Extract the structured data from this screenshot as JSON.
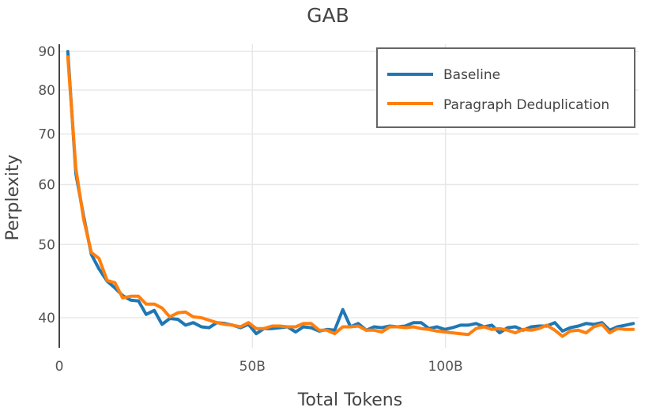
{
  "chart_data": {
    "type": "line",
    "title": "GAB",
    "xlabel": "Total Tokens",
    "ylabel": "Perplexity",
    "y_scale": "log",
    "xlim": [
      0,
      150
    ],
    "ylim": [
      36.5,
      92
    ],
    "x_ticks": [
      {
        "value": 0,
        "label": "0"
      },
      {
        "value": 50,
        "label": "50B"
      },
      {
        "value": 100,
        "label": "100B"
      }
    ],
    "y_ticks": [
      {
        "value": 40,
        "label": "40"
      },
      {
        "value": 50,
        "label": "50"
      },
      {
        "value": 60,
        "label": "60"
      },
      {
        "value": 70,
        "label": "70"
      },
      {
        "value": 80,
        "label": "80"
      },
      {
        "value": 90,
        "label": "90"
      }
    ],
    "grid": true,
    "legend_position": "top-right",
    "x": [
      2.2,
      4.3,
      6.3,
      8.3,
      10.3,
      12.4,
      14.4,
      16.4,
      18.5,
      20.5,
      22.5,
      24.6,
      26.6,
      28.6,
      30.7,
      32.7,
      34.7,
      36.8,
      38.8,
      40.8,
      42.9,
      44.9,
      46.9,
      49.0,
      51.0,
      53.0,
      55.1,
      57.1,
      59.1,
      61.2,
      63.2,
      65.2,
      67.3,
      69.3,
      71.3,
      73.4,
      75.4,
      77.4,
      79.5,
      81.5,
      83.5,
      85.6,
      87.6,
      89.6,
      91.7,
      93.7,
      95.7,
      97.8,
      99.8,
      101.8,
      103.9,
      105.9,
      107.9,
      110.0,
      112.0,
      114.0,
      116.1,
      118.1,
      120.1,
      122.2,
      124.2,
      126.2,
      128.3,
      130.3,
      132.3,
      134.4,
      136.4,
      138.4,
      140.5,
      142.5,
      144.5,
      146.6,
      148.6
    ],
    "series": [
      {
        "name": "Baseline",
        "color": "#1f77b4",
        "values": [
          90.0,
          62.0,
          54.5,
          48.5,
          46.4,
          44.7,
          43.8,
          42.8,
          42.2,
          42.1,
          40.4,
          40.9,
          39.2,
          39.9,
          39.8,
          39.1,
          39.4,
          38.9,
          38.8,
          39.4,
          39.3,
          39.1,
          38.8,
          39.2,
          38.1,
          38.7,
          38.7,
          38.8,
          38.9,
          38.3,
          38.9,
          38.8,
          38.4,
          38.6,
          38.5,
          41.0,
          38.9,
          39.3,
          38.5,
          38.9,
          38.8,
          39.0,
          38.9,
          39.0,
          39.4,
          39.4,
          38.7,
          38.9,
          38.6,
          38.8,
          39.1,
          39.1,
          39.3,
          38.9,
          39.1,
          38.2,
          38.8,
          38.9,
          38.5,
          38.9,
          39.0,
          39.0,
          39.4,
          38.4,
          38.8,
          39.0,
          39.3,
          39.2,
          39.4,
          38.5,
          38.9,
          39.1,
          39.3
        ],
        "show": true
      },
      {
        "name": "Paragraph Deduplication",
        "color": "#ff7f0e",
        "values": [
          88.5,
          63.0,
          54.0,
          48.8,
          47.9,
          44.8,
          44.5,
          42.5,
          42.7,
          42.7,
          41.7,
          41.7,
          41.2,
          40.1,
          40.6,
          40.7,
          40.1,
          40.0,
          39.7,
          39.4,
          39.2,
          39.1,
          38.9,
          39.4,
          38.7,
          38.7,
          39.0,
          39.0,
          38.9,
          38.9,
          39.3,
          39.3,
          38.5,
          38.5,
          38.1,
          38.9,
          38.9,
          39.0,
          38.5,
          38.5,
          38.3,
          38.9,
          38.9,
          38.8,
          38.9,
          38.7,
          38.6,
          38.4,
          38.3,
          38.2,
          38.1,
          38.0,
          38.7,
          38.9,
          38.6,
          38.7,
          38.5,
          38.2,
          38.6,
          38.5,
          38.7,
          39.1,
          38.5,
          37.8,
          38.4,
          38.5,
          38.2,
          38.9,
          39.2,
          38.2,
          38.7,
          38.6,
          38.6
        ],
        "show": true
      }
    ]
  }
}
